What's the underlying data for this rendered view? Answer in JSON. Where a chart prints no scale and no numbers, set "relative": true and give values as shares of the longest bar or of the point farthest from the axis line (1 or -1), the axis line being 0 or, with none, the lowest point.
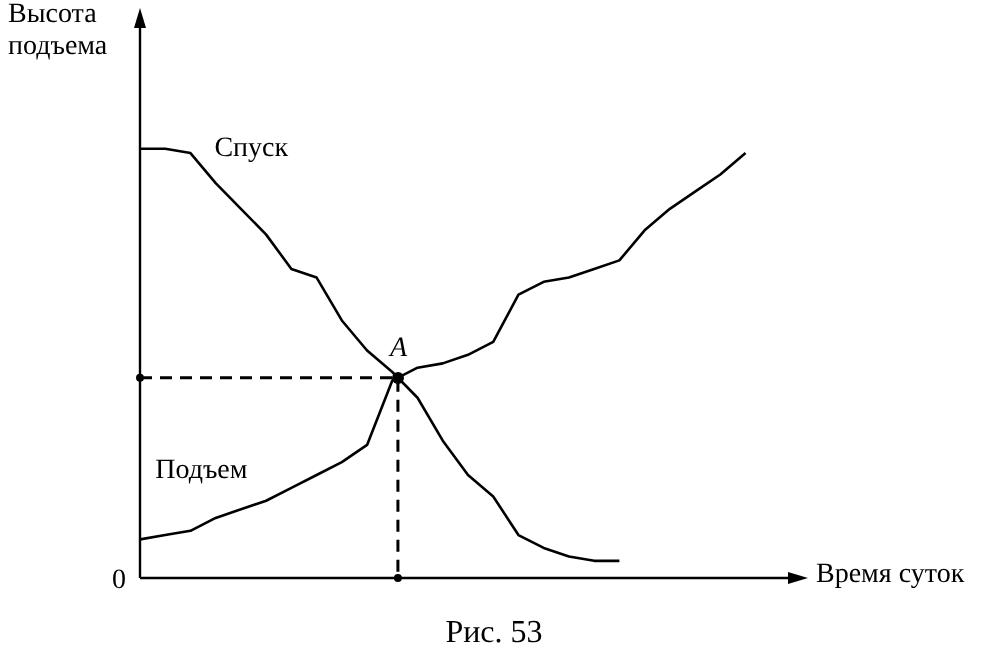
{
  "chart_data": {
    "type": "line",
    "relative": true,
    "xlabel": "Время суток",
    "ylabel": "Высота подъема",
    "categories": [
      null,
      null,
      null,
      null,
      null,
      null,
      null,
      null,
      null,
      null,
      null,
      null,
      null,
      null,
      null,
      null,
      null,
      null,
      null,
      null,
      null,
      null,
      null,
      null,
      null
    ],
    "series": [
      {
        "name": "Спуск",
        "color": "#000000",
        "values": [
          1,
          1,
          0.99,
          0.92,
          0.86,
          0.8,
          0.72,
          0.7,
          0.6,
          0.53,
          0.48,
          0.42,
          0.32,
          0.24,
          0.19,
          0.1,
          0.07,
          0.05,
          0.04,
          0.04,
          null,
          null,
          null,
          null,
          null
        ]
      },
      {
        "name": "Подъем",
        "color": "#000000",
        "values": [
          0.09,
          0.1,
          0.11,
          0.14,
          0.16,
          0.18,
          0.21,
          0.24,
          0.27,
          0.31,
          0.46,
          0.49,
          0.5,
          0.52,
          0.55,
          0.66,
          0.69,
          0.7,
          0.72,
          0.74,
          0.81,
          0.86,
          0.9,
          0.94,
          0.99
        ]
      }
    ],
    "marker": "none",
    "line_style": "solid",
    "legend": false,
    "annotations": [
      "A",
      "0",
      "Рис. 53"
    ]
  }
}
